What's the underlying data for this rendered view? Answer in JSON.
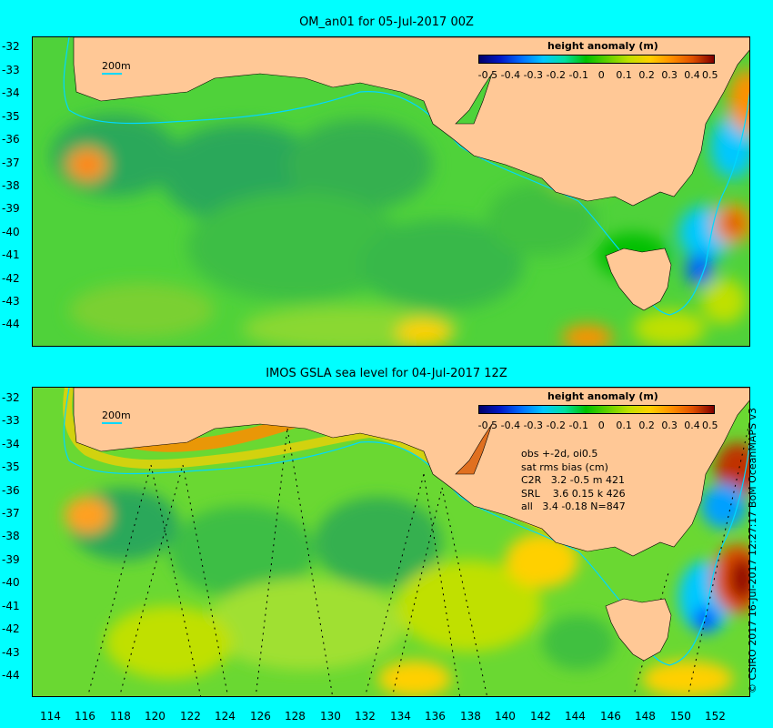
{
  "top_panel": {
    "title": "OM_an01 for 05-Jul-2017 00Z",
    "colorbar_title": "height anomaly (m)",
    "contour_label": "200m"
  },
  "bottom_panel": {
    "title": "IMOS GSLA sea level  for 04-Jul-2017 12Z",
    "colorbar_title": "height anomaly (m)",
    "contour_label": "200m",
    "stats": [
      "obs +-2d, oi0.5",
      "sat rms bias (cm)",
      "C2R   3.2 -0.5 m 421",
      "SRL    3.6 0.15 k 426",
      "all   3.4 -0.18 N=847"
    ]
  },
  "colorbar_ticks": [
    "-0.5",
    "-0.4",
    "-0.3",
    "-0.2",
    "-0.1",
    "0",
    "0.1",
    "0.2",
    "0.3",
    "0.4",
    "0.5"
  ],
  "y_ticks_top": [
    "-32",
    "-33",
    "-34",
    "-35",
    "-36",
    "-37",
    "-38",
    "-39",
    "-40",
    "-41",
    "-42",
    "-43",
    "-44"
  ],
  "y_ticks_bottom": [
    "-32",
    "-33",
    "-34",
    "-35",
    "-36",
    "-37",
    "-38",
    "-39",
    "-40",
    "-41",
    "-42",
    "-43",
    "-44"
  ],
  "x_ticks": [
    "114",
    "116",
    "118",
    "120",
    "122",
    "124",
    "126",
    "128",
    "130",
    "132",
    "134",
    "136",
    "138",
    "140",
    "142",
    "144",
    "146",
    "148",
    "150",
    "152"
  ],
  "copyright": "© CSIRO 2017   16-Jul-2017 12:27:17 BoM OceanMAPS v3",
  "colors": {
    "background": "#00ffff",
    "land": "#ffc896",
    "ocean_base": "#4fd23a",
    "contour_200m": "#00d8ff"
  }
}
